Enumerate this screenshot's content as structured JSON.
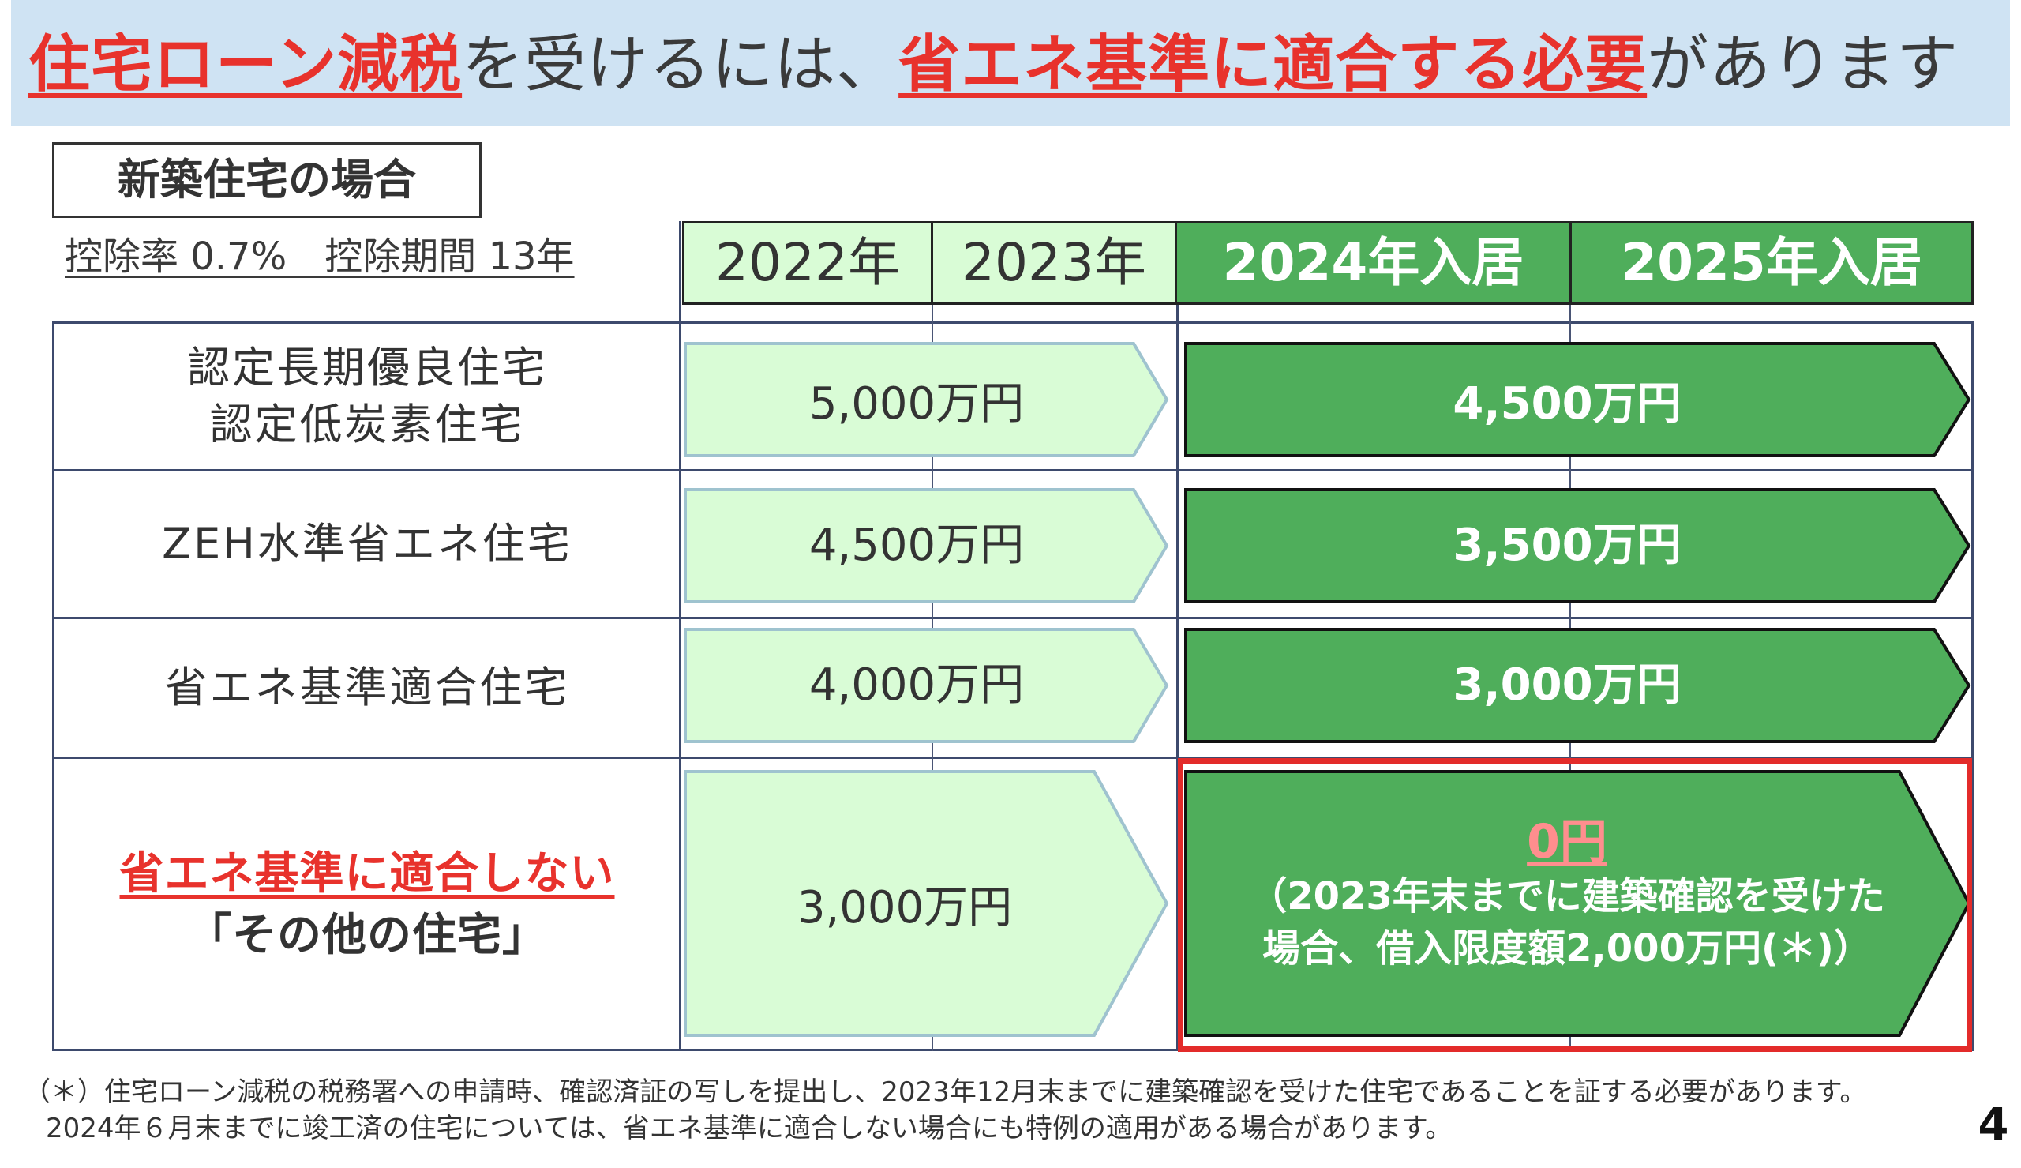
{
  "headline": {
    "part1": "住宅ローン減税",
    "part2": "を受けるには、",
    "part3": "省エネ基準に適合する必要",
    "part4": "があります"
  },
  "section": {
    "title": "新築住宅の場合",
    "deduction": "控除率 0.7%　控除期間 13年"
  },
  "years": [
    "2022年",
    "2023年",
    "2024年入居",
    "2025年入居"
  ],
  "rows": [
    {
      "label_lines": [
        "認定長期優良住宅",
        "認定低炭素住宅"
      ],
      "limit_2022_2023": "5,000万円",
      "limit_2024_2025": "4,500万円"
    },
    {
      "label_lines": [
        "ZEH水準省エネ住宅"
      ],
      "limit_2022_2023": "4,500万円",
      "limit_2024_2025": "3,500万円"
    },
    {
      "label_lines": [
        "省エネ基準適合住宅"
      ],
      "limit_2022_2023": "4,000万円",
      "limit_2024_2025": "3,000万円"
    },
    {
      "label_lines": [
        "省エネ基準に適合しない",
        "「その他の住宅」"
      ],
      "limit_2022_2023": "3,000万円",
      "limit_2024_2025": "0円",
      "note_lines": [
        "（2023年末までに建築確認を受けた",
        "場合、借入限度額2,000万円(＊)）"
      ]
    }
  ],
  "footnote": {
    "line1": "（＊）住宅ローン減税の税務署への申請時、確認済証の写しを提出し、2023年12月末までに建築確認を受けた住宅であることを証する必要があります。",
    "line2": "2024年６月末までに竣工済の住宅については、省エネ基準に適合しない場合にも特例の適用がある場合があります。"
  },
  "page_number": "4",
  "colors": {
    "banner": "#cfe3f3",
    "accent_red": "#e8322c",
    "light_green": "#d9fcd6",
    "dark_green": "#4fae5b",
    "pink": "#ff8e8e"
  }
}
